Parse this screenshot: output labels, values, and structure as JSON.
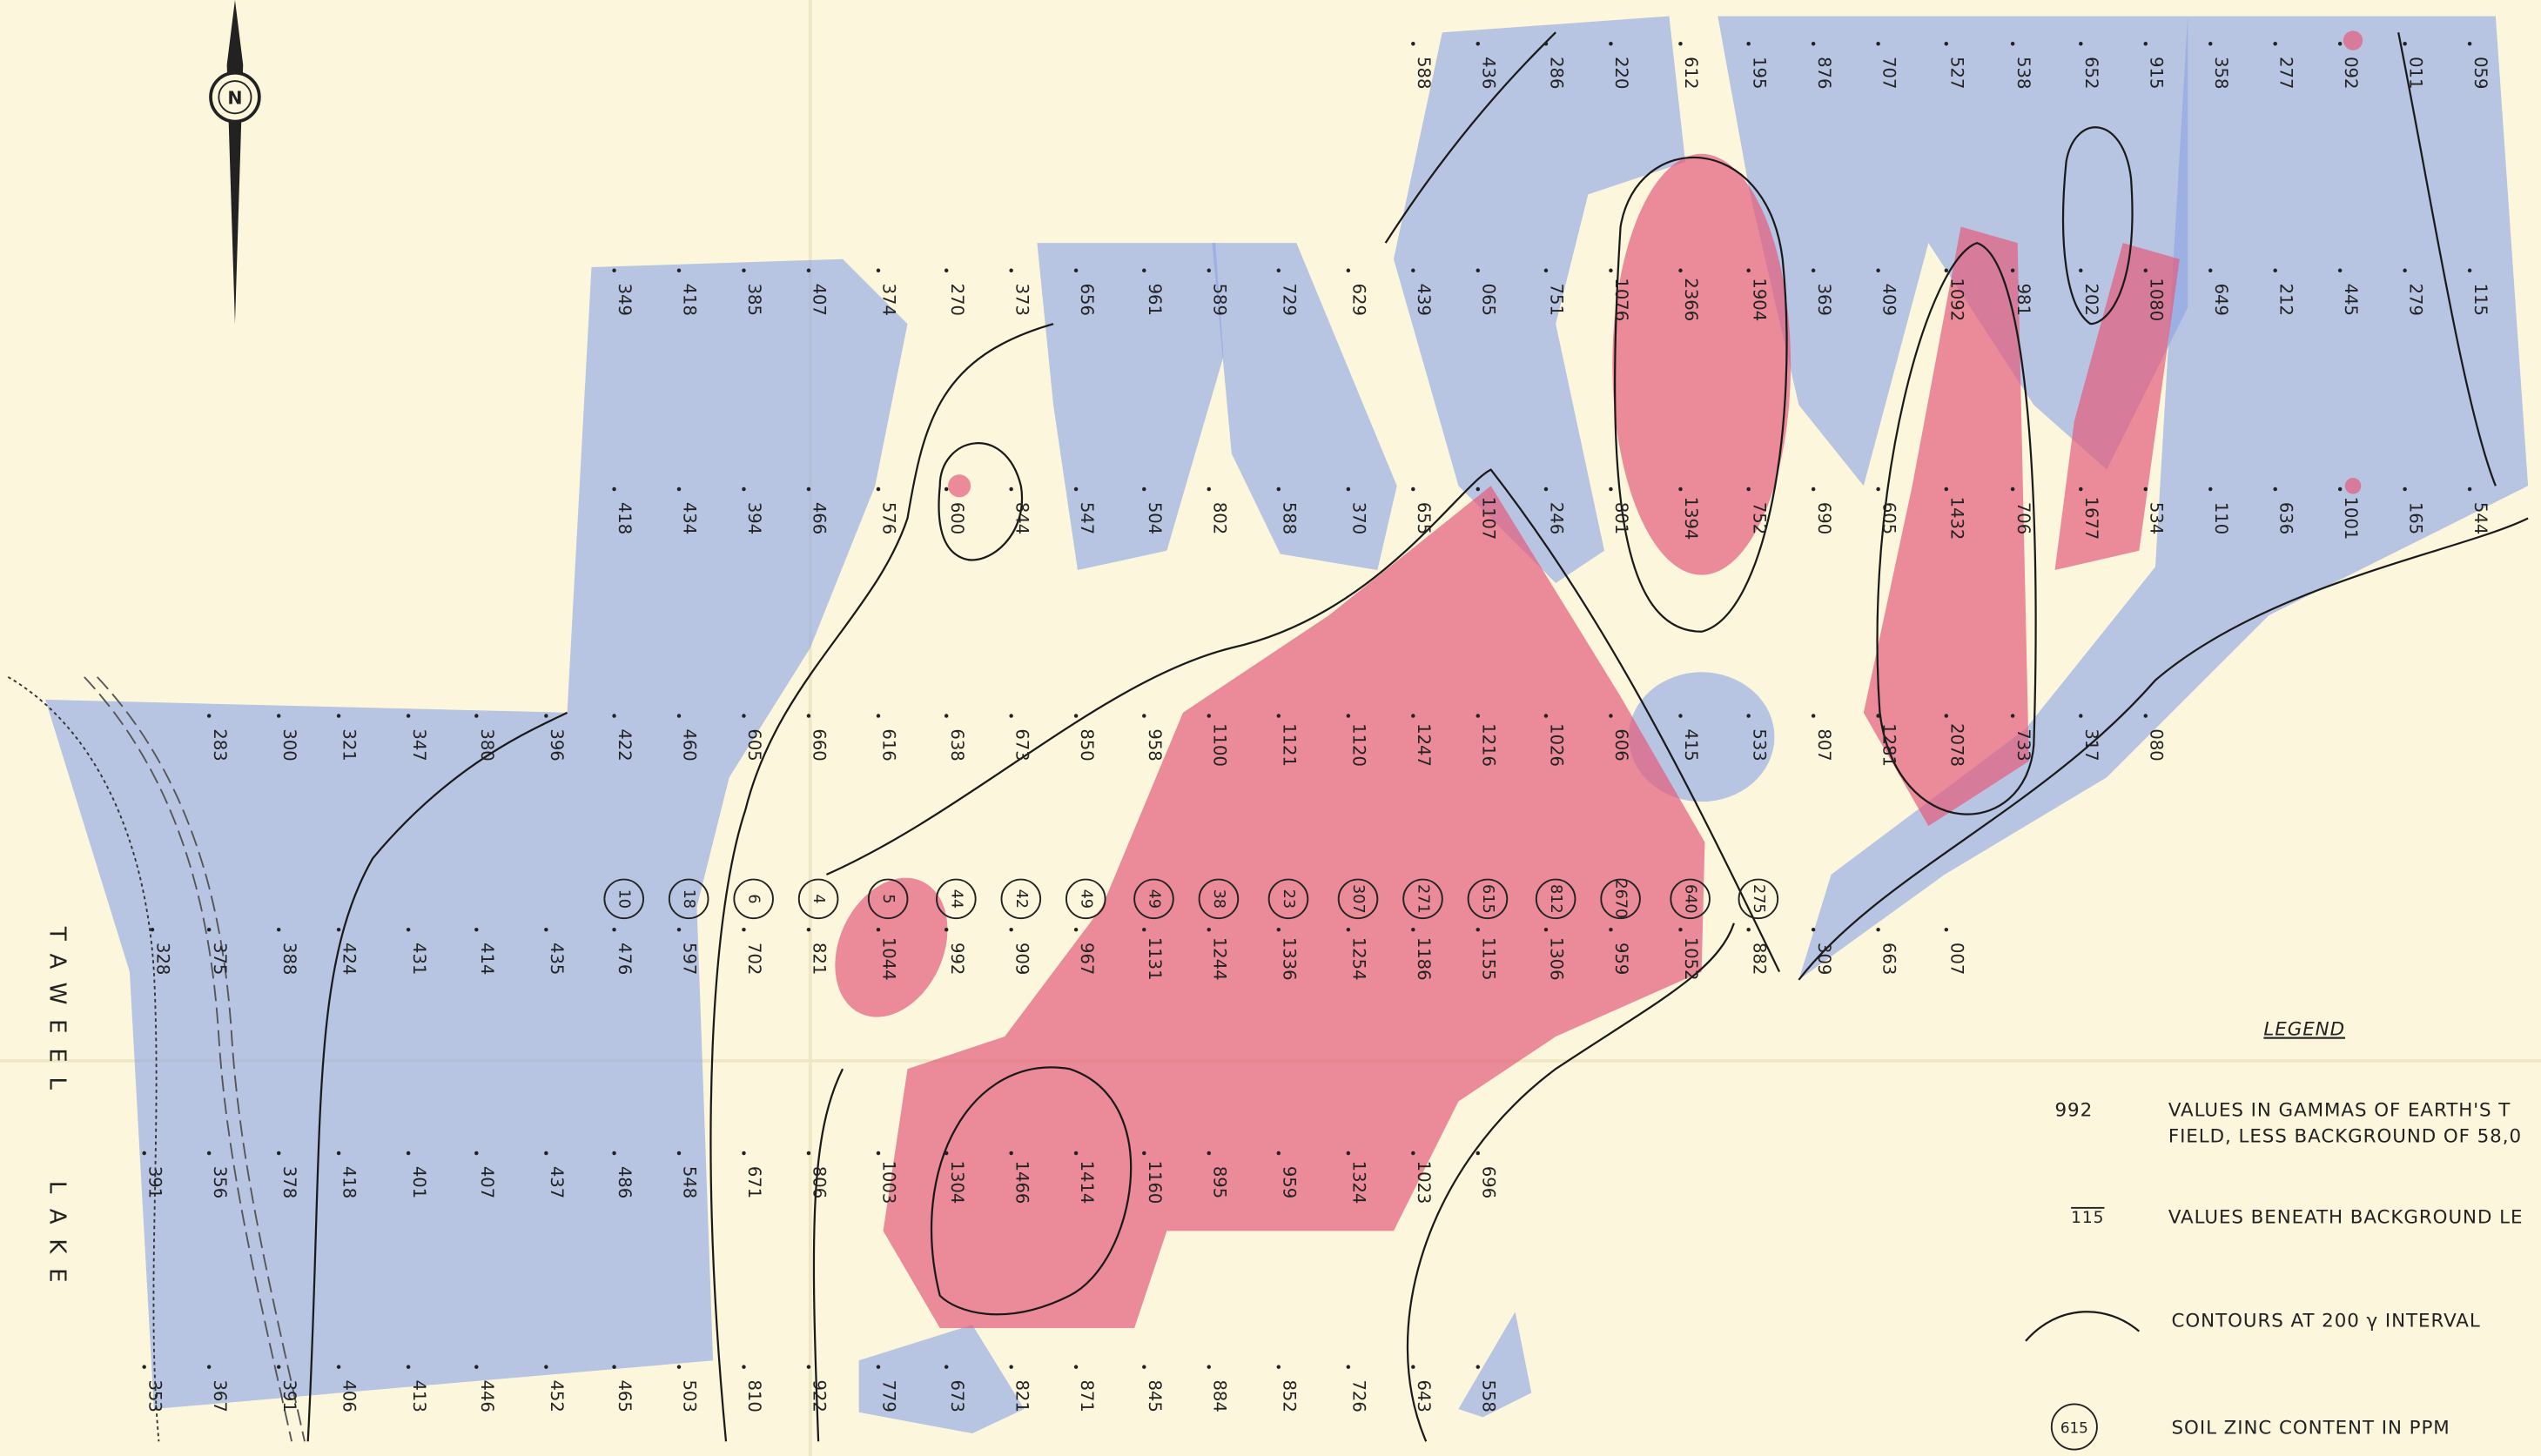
{
  "lake": {
    "line1": "TAWEEL",
    "line2": "LAKE"
  },
  "north": "N",
  "rows": [
    [
      "588",
      "436",
      "286",
      "220",
      "612",
      "195",
      "876",
      "707",
      "527",
      "538",
      "652",
      "915",
      "358",
      "277",
      "092",
      "011",
      "059"
    ],
    [
      "349",
      "418",
      "385",
      "407",
      "374",
      "270",
      "373",
      "656",
      "961",
      "589",
      "729",
      "629",
      "439",
      "065",
      "751",
      "1076",
      "2366",
      "1904",
      "369",
      "409",
      "1092",
      "981",
      "202",
      "1080",
      "649",
      "212",
      "445",
      "279",
      "115"
    ],
    [
      "418",
      "434",
      "394",
      "466",
      "576",
      "600",
      "844",
      "547",
      "504",
      "802",
      "588",
      "370",
      "655",
      "1107",
      "246",
      "801",
      "1394",
      "752",
      "690",
      "605",
      "1432",
      "706",
      "1677",
      "534",
      "110",
      "636",
      "1001",
      "165",
      "544"
    ],
    [
      "283",
      "300",
      "321",
      "347",
      "380",
      "396",
      "422",
      "460",
      "605",
      "660",
      "616",
      "638",
      "673",
      "850",
      "958",
      "1100",
      "1121",
      "1120",
      "1247",
      "1216",
      "1026",
      "606",
      "415",
      "533",
      "807",
      "1281",
      "2078",
      "733",
      "317",
      "080"
    ],
    [
      "328",
      "375",
      "388",
      "424",
      "431",
      "414",
      "435",
      "476",
      "597",
      "702",
      "821",
      "1044",
      "992",
      "909",
      "967",
      "1131",
      "1244",
      "1336",
      "1254",
      "1186",
      "1155",
      "1306",
      "959",
      "1052",
      "882",
      "309",
      "663",
      "007"
    ],
    [
      "391",
      "356",
      "378",
      "418",
      "401",
      "407",
      "437",
      "486",
      "548",
      "671",
      "806",
      "1003",
      "1304",
      "1466",
      "1414",
      "1160",
      "895",
      "959",
      "1324",
      "1023",
      "696"
    ],
    [
      "353",
      "367",
      "391",
      "406",
      "413",
      "446",
      "452",
      "465",
      "503",
      "810",
      "922",
      "779",
      "673",
      "821",
      "871",
      "845",
      "884",
      "852",
      "726",
      "643",
      "558"
    ]
  ],
  "zinc": [
    "10",
    "18",
    "6",
    "4",
    "5",
    "44",
    "42",
    "49",
    "49",
    "38",
    "23",
    "307",
    "271",
    "615",
    "812",
    "2670",
    "640",
    "275"
  ],
  "legend": {
    "title": "LEGEND",
    "sample_value": "992",
    "value_text_1": "VALUES IN GAMMAS OF EARTH'S T",
    "value_text_2": "FIELD, LESS BACKGROUND OF 58,0",
    "sample_below": "115",
    "below_text": "VALUES BENEATH BACKGROUND LE",
    "contour_text": "CONTOURS AT 200 γ INTERVAL",
    "sample_zinc": "615",
    "zinc_text": "SOIL ZINC CONTENT IN PPM"
  }
}
